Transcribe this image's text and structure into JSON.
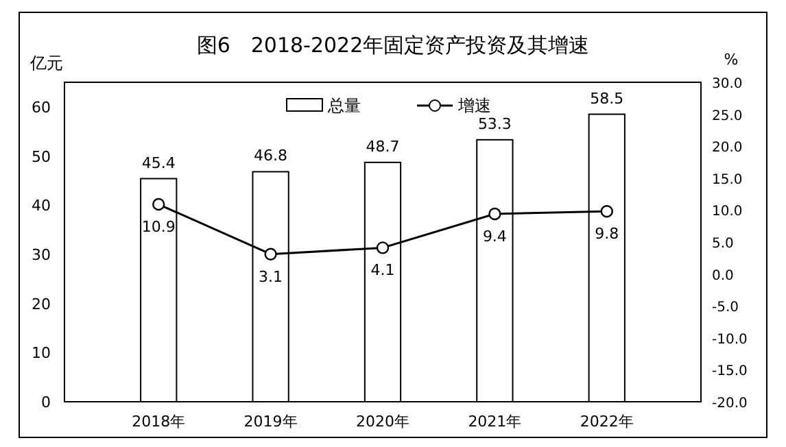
{
  "chart_data": {
    "type": "bar",
    "title": "图6　2018-2022年固定资产投资及其增速",
    "ylabel": "亿元",
    "y2label": "%",
    "categories": [
      "2018年",
      "2019年",
      "2020年",
      "2021年",
      "2022年"
    ],
    "series": [
      {
        "name": "总量",
        "color": "#ffffff",
        "values": [
          45.4,
          46.8,
          48.7,
          53.3,
          58.5
        ]
      },
      {
        "name": "增速",
        "type": "line",
        "axis": "y2",
        "color": "#000000",
        "marker": "circle",
        "values": [
          10.9,
          3.1,
          4.1,
          9.4,
          9.8
        ]
      }
    ],
    "ylim": [
      0,
      65
    ],
    "yticks": [
      0,
      10,
      20,
      30,
      40,
      50,
      60
    ],
    "y2lim": [
      -20,
      30
    ],
    "y2ticks": [
      {
        "value": -20,
        "label": "-20.0"
      },
      {
        "value": -15,
        "label": "-15.0"
      },
      {
        "value": -10,
        "label": "-10.0"
      },
      {
        "value": -5,
        "label": "-5.0"
      },
      {
        "value": 0,
        "label": "0.0"
      },
      {
        "value": 5,
        "label": "5.0"
      },
      {
        "value": 10,
        "label": "10.0"
      },
      {
        "value": 15,
        "label": "15.0"
      },
      {
        "value": 20,
        "label": "20.0"
      },
      {
        "value": 25,
        "label": "25.0"
      },
      {
        "value": 30,
        "label": "30.0"
      }
    ],
    "data_labels": true,
    "legend": "top",
    "grid": false
  }
}
